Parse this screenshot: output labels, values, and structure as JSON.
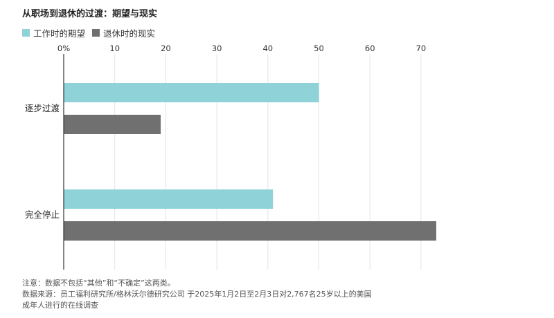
{
  "chart_data": {
    "type": "bar",
    "orientation": "horizontal",
    "title": "从职场到退休的过渡：期望与现实",
    "categories": [
      "逐步过渡",
      "完全停止"
    ],
    "series": [
      {
        "name": "工作时的期望",
        "values": [
          50,
          41
        ],
        "color": "#8fd3d8"
      },
      {
        "name": "退休时的现实",
        "values": [
          19,
          73
        ],
        "color": "#707070"
      }
    ],
    "xlim": [
      0,
      74
    ],
    "ticks": [
      0,
      10,
      20,
      30,
      40,
      50,
      60,
      70
    ],
    "tick_labels": [
      "0%",
      "10",
      "20",
      "30",
      "40",
      "50",
      "60",
      "70"
    ],
    "grid": true,
    "legend_position": "top-left"
  },
  "notes": {
    "line1": "注意：数据不包括“其他”和“不确定”这两类。",
    "line2": "数据来源：员工福利研究所/格林沃尔德研究公司 于2025年1月2日至2月3日对2,767名25岁以上的美国",
    "line3": "成年人进行的在线调查"
  }
}
